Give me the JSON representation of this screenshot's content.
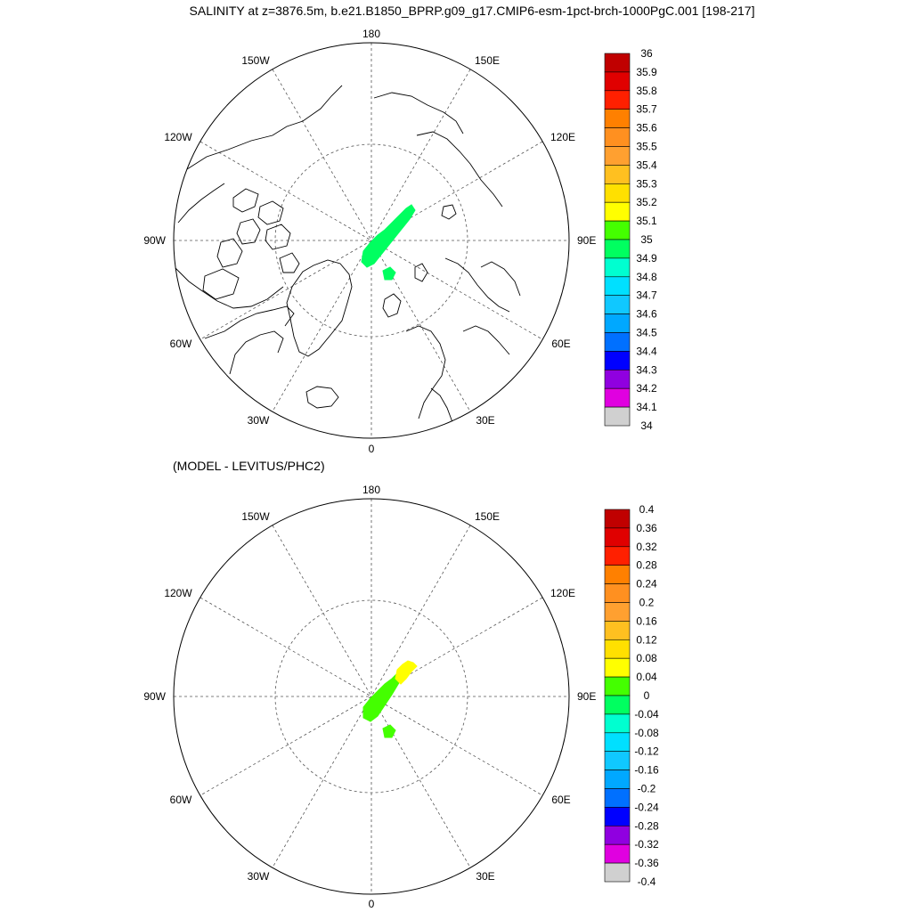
{
  "title": "SALINITY at z=3876.5m, b.e21.B1850_BPRP.g09_g17.CMIP6-esm-1pct-brch-1000PgC.001 [198-217]",
  "subtitle": "(MODEL - LEVITUS/PHC2)",
  "longitude_labels": {
    "top": "180",
    "upper_left": "150W",
    "upper_right": "150E",
    "mid_upper_left": "120W",
    "mid_upper_right": "120E",
    "left": "90W",
    "right": "90E",
    "mid_lower_left": "60W",
    "mid_lower_right": "60E",
    "lower_left": "30W",
    "lower_right": "30E",
    "bottom": "0"
  },
  "colorbar_top": {
    "labels": [
      "36",
      "35.9",
      "35.8",
      "35.7",
      "35.6",
      "35.5",
      "35.4",
      "35.3",
      "35.2",
      "35.1",
      "35",
      "34.9",
      "34.8",
      "34.7",
      "34.6",
      "34.5",
      "34.4",
      "34.3",
      "34.2",
      "34.1",
      "34"
    ],
    "colors": [
      "#c00000",
      "#e00000",
      "#ff2000",
      "#ff8000",
      "#ff9020",
      "#ffa030",
      "#ffc020",
      "#ffe000",
      "#ffff00",
      "#44ff00",
      "#00ff60",
      "#00ffd0",
      "#00e0ff",
      "#10c8ff",
      "#00a8ff",
      "#0070ff",
      "#0000ff",
      "#9000e0",
      "#e000e0",
      "#d0d0d0",
      "#707070"
    ]
  },
  "colorbar_bottom": {
    "labels": [
      "0.4",
      "0.36",
      "0.32",
      "0.28",
      "0.24",
      "0.2",
      "0.16",
      "0.12",
      "0.08",
      "0.04",
      "0",
      "-0.04",
      "-0.08",
      "-0.12",
      "-0.16",
      "-0.2",
      "-0.24",
      "-0.28",
      "-0.32",
      "-0.36",
      "-0.4"
    ],
    "colors": [
      "#c00000",
      "#e00000",
      "#ff2000",
      "#ff8000",
      "#ff9020",
      "#ffa030",
      "#ffc020",
      "#ffe000",
      "#ffff00",
      "#44ff00",
      "#00ff60",
      "#00ffd0",
      "#00e0ff",
      "#10c8ff",
      "#00a8ff",
      "#0070ff",
      "#0000ff",
      "#9000e0",
      "#e000e0",
      "#d0d0d0",
      "#707070"
    ]
  },
  "fill_colors": {
    "top_main": "#00ff60",
    "bottom_main": "#44ff00",
    "bottom_highlight": "#ffff00"
  }
}
